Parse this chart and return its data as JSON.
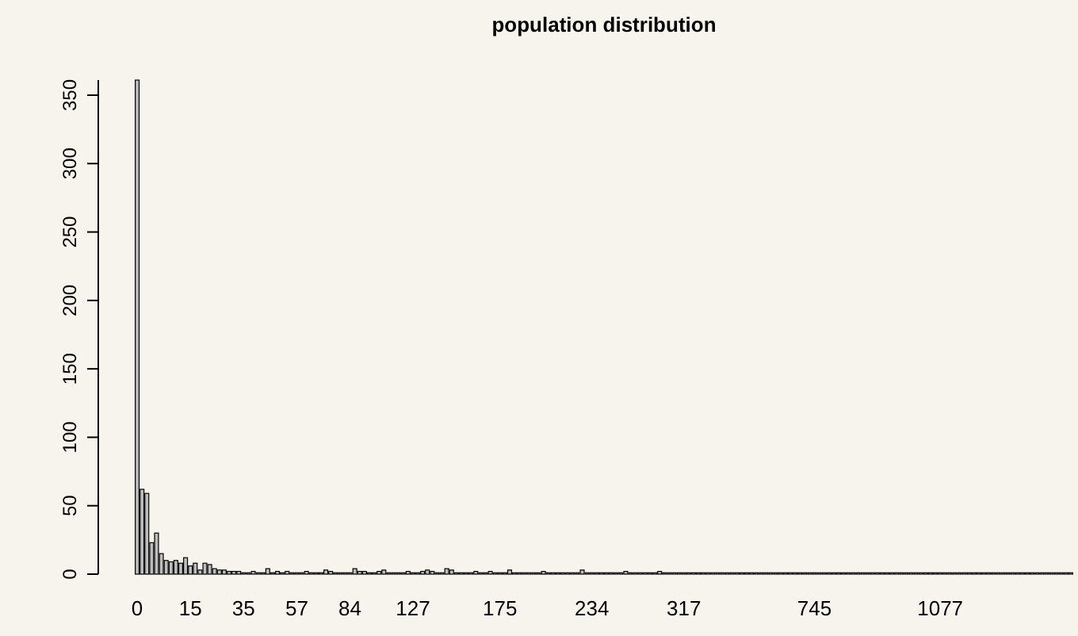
{
  "chart_data": {
    "type": "bar",
    "title": "population distribution",
    "color": "#bebebe",
    "categories": [
      "0",
      null,
      null,
      null,
      null,
      null,
      null,
      null,
      null,
      null,
      null,
      "15",
      null,
      null,
      null,
      null,
      null,
      null,
      null,
      null,
      null,
      null,
      "35",
      null,
      null,
      null,
      null,
      null,
      null,
      null,
      null,
      null,
      null,
      "57",
      null,
      null,
      null,
      null,
      null,
      null,
      null,
      null,
      null,
      null,
      "84",
      null,
      null,
      null,
      null,
      null,
      null,
      null,
      null,
      null,
      null,
      null,
      null,
      "127",
      null,
      null,
      null,
      null,
      null,
      null,
      null,
      null,
      null,
      null,
      null,
      null,
      null,
      null,
      null,
      null,
      null,
      "175",
      null,
      null,
      null,
      null,
      null,
      null,
      null,
      null,
      null,
      null,
      null,
      null,
      null,
      null,
      null,
      null,
      null,
      null,
      "234",
      null,
      null,
      null,
      null,
      null,
      null,
      null,
      null,
      null,
      null,
      null,
      null,
      null,
      null,
      null,
      null,
      null,
      null,
      "317",
      null,
      null,
      null,
      null,
      null,
      null,
      null,
      null,
      null,
      null,
      null,
      null,
      null,
      null,
      null,
      null,
      null,
      null,
      null,
      null,
      null,
      null,
      null,
      null,
      null,
      null,
      "745",
      null,
      null,
      null,
      null,
      null,
      null,
      null,
      null,
      null,
      null,
      null,
      null,
      null,
      null,
      null,
      null,
      null,
      null,
      null,
      null,
      null,
      null,
      null,
      null,
      null,
      "1077",
      null,
      null,
      null,
      null,
      null,
      null,
      null,
      null,
      null,
      null,
      null,
      null,
      null,
      null,
      null,
      null,
      null,
      null,
      null,
      null,
      null,
      null,
      null,
      null,
      null,
      null,
      null
    ],
    "values": [
      361,
      62,
      59,
      23,
      30,
      15,
      10,
      9,
      10,
      8,
      12,
      6,
      8,
      3,
      8,
      7,
      4,
      3,
      3,
      2,
      2,
      2,
      1,
      1,
      2,
      1,
      1,
      4,
      1,
      2,
      1,
      2,
      1,
      1,
      1,
      2,
      1,
      1,
      1,
      3,
      2,
      1,
      1,
      1,
      1,
      4,
      2,
      2,
      1,
      1,
      2,
      3,
      1,
      1,
      1,
      1,
      2,
      1,
      1,
      2,
      3,
      2,
      1,
      1,
      4,
      3,
      1,
      1,
      1,
      1,
      2,
      1,
      1,
      2,
      1,
      1,
      1,
      3,
      1,
      1,
      1,
      1,
      1,
      1,
      2,
      1,
      1,
      1,
      1,
      1,
      1,
      1,
      3,
      1,
      1,
      1,
      1,
      1,
      1,
      1,
      1,
      2,
      1,
      1,
      1,
      1,
      1,
      1,
      2,
      1,
      1,
      1,
      1,
      1,
      1,
      1,
      1,
      1,
      1,
      1,
      1,
      1,
      1,
      1,
      1,
      1,
      1,
      1,
      1,
      1,
      1,
      1,
      1,
      1,
      1,
      1,
      1,
      1,
      1,
      1,
      1,
      1,
      1,
      1,
      1,
      1,
      1,
      1,
      1,
      1,
      1,
      1,
      1,
      1,
      1,
      1,
      1,
      1,
      1,
      1,
      1,
      1,
      1,
      1,
      1,
      1,
      1,
      1,
      1,
      1,
      1,
      1,
      1,
      1,
      1,
      1,
      1,
      1,
      1,
      1,
      1,
      1,
      1,
      1,
      1,
      1,
      1,
      1,
      1,
      1,
      1,
      1,
      1,
      1
    ],
    "ylim": [
      0,
      361
    ],
    "yticks": [
      0,
      50,
      100,
      150,
      200,
      250,
      300,
      350
    ],
    "grid": false
  }
}
